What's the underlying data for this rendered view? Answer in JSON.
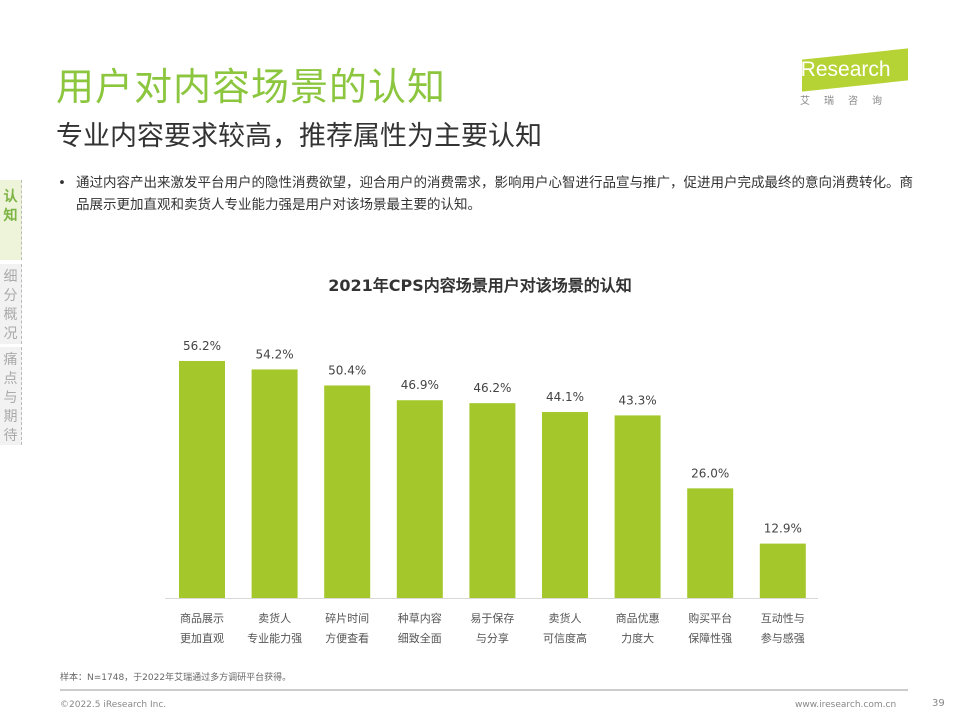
{
  "header": {
    "title": "用户对内容场景的认知",
    "subtitle": "专业内容要求较高，推荐属性为主要认知",
    "bullet": "通过内容产出来激发平台用户的隐性消费欲望，迎合用户的消费需求，影响用户心智进行品宣与推广，促进用户完成最终的意向消费转化。商品展示更加直观和卖货人专业能力强是用户对该场景最主要的认知。"
  },
  "logo": {
    "text": "iResearch",
    "sub": "艾瑞咨询"
  },
  "sidebar": {
    "items": [
      {
        "label": "认知",
        "active": true
      },
      {
        "label": "细分概况",
        "active": false
      },
      {
        "label": "痛点与期待",
        "active": false
      }
    ]
  },
  "chart_data": {
    "type": "bar",
    "title": "2021年CPS内容场景用户对该场景的认知",
    "categories": [
      [
        "商品展示",
        "更加直观"
      ],
      [
        "卖货人",
        "专业能力强"
      ],
      [
        "碎片时间",
        "方便查看"
      ],
      [
        "种草内容",
        "细致全面"
      ],
      [
        "易于保存",
        "与分享"
      ],
      [
        "卖货人",
        "可信度高"
      ],
      [
        "商品优惠",
        "力度大"
      ],
      [
        "购买平台",
        "保障性强"
      ],
      [
        "互动性与",
        "参与感强"
      ]
    ],
    "values": [
      56.2,
      54.2,
      50.4,
      46.9,
      46.2,
      44.1,
      43.3,
      26.0,
      12.9
    ],
    "value_labels": [
      "56.2%",
      "54.2%",
      "50.4%",
      "46.9%",
      "46.2%",
      "44.1%",
      "43.3%",
      "26.0%",
      "12.9%"
    ],
    "bar_color": "#a4c82c",
    "grid": false
  },
  "footer": {
    "note": "样本：N=1748，于2022年艾瑞通过多方调研平台获得。",
    "copyright": "©2022.5 iResearch Inc.",
    "url": "www.iresearch.com.cn",
    "page": "39"
  }
}
